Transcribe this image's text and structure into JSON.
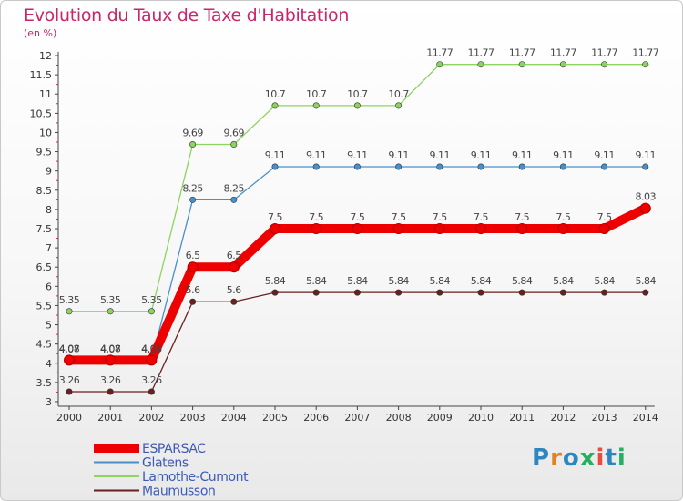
{
  "title": "Evolution du Taux de Taxe d'Habitation",
  "subtitle": "(en %)",
  "logo": {
    "text": "Proxiti",
    "colors": [
      "#2e86c1",
      "#e67e22",
      "#2e86c1",
      "#27ae60",
      "#e74c3c",
      "#2e86c1",
      "#27ae60"
    ]
  },
  "chart_data": {
    "type": "line",
    "title": "Evolution du Taux de Taxe d'Habitation",
    "ylabel": "(en %)",
    "xlabel": "",
    "x": [
      "2000",
      "2001",
      "2002",
      "2003",
      "2004",
      "2005",
      "2006",
      "2007",
      "2008",
      "2009",
      "2010",
      "2011",
      "2012",
      "2013",
      "2014"
    ],
    "ylim": [
      3,
      12
    ],
    "yticks": [
      "3",
      "3.5",
      "4",
      "4.5",
      "5",
      "5.5",
      "6",
      "6.5",
      "7",
      "7.5",
      "8",
      "8.5",
      "9",
      "9.5",
      "10",
      "10.5",
      "11",
      "11.5",
      "12"
    ],
    "grid": false,
    "legend_position": "bottom-left",
    "series": [
      {
        "name": "Lamothe-Cumont",
        "color": "#8dd35f",
        "labels": [
          "5.35",
          "5.35",
          "5.35",
          "9.69",
          "9.69",
          "10.7",
          "10.7",
          "10.7",
          "10.7",
          "11.77",
          "11.77",
          "11.77",
          "11.77",
          "11.77",
          "11.77"
        ],
        "values": [
          5.35,
          5.35,
          5.35,
          9.69,
          9.69,
          10.7,
          10.7,
          10.7,
          10.7,
          11.77,
          11.77,
          11.77,
          11.77,
          11.77,
          11.77
        ]
      },
      {
        "name": "Glatens",
        "color": "#4a8fc9",
        "labels": [
          "4.07",
          "4.07",
          "4.07",
          "8.25",
          "8.25",
          "9.11",
          "9.11",
          "9.11",
          "9.11",
          "9.11",
          "9.11",
          "9.11",
          "9.11",
          "9.11",
          "9.11"
        ],
        "values": [
          4.07,
          4.07,
          4.07,
          8.25,
          8.25,
          9.11,
          9.11,
          9.11,
          9.11,
          9.11,
          9.11,
          9.11,
          9.11,
          9.11,
          9.11
        ]
      },
      {
        "name": "Maumusson",
        "color": "#6b1f1f",
        "labels": [
          "3.26",
          "3.26",
          "3.26",
          "5.6",
          "5.6",
          "5.84",
          "5.84",
          "5.84",
          "5.84",
          "5.84",
          "5.84",
          "5.84",
          "5.84",
          "5.84",
          "5.84"
        ],
        "values": [
          3.26,
          3.26,
          3.26,
          5.6,
          5.6,
          5.84,
          5.84,
          5.84,
          5.84,
          5.84,
          5.84,
          5.84,
          5.84,
          5.84,
          5.84
        ]
      },
      {
        "name": "ESPARSAC",
        "color": "#ee0000",
        "labels": [
          "4.08",
          "4.08",
          "4.08",
          "6.5",
          "6.5",
          "7.5",
          "7.5",
          "7.5",
          "7.5",
          "7.5",
          "7.5",
          "7.5",
          "7.5",
          "7.5",
          "8.03"
        ],
        "values": [
          4.08,
          4.08,
          4.08,
          6.5,
          6.5,
          7.5,
          7.5,
          7.5,
          7.5,
          7.5,
          7.5,
          7.5,
          7.5,
          7.5,
          8.03
        ],
        "highlight": true
      }
    ],
    "legend": [
      "ESPARSAC",
      "Glatens",
      "Lamothe-Cumont",
      "Maumusson"
    ]
  }
}
